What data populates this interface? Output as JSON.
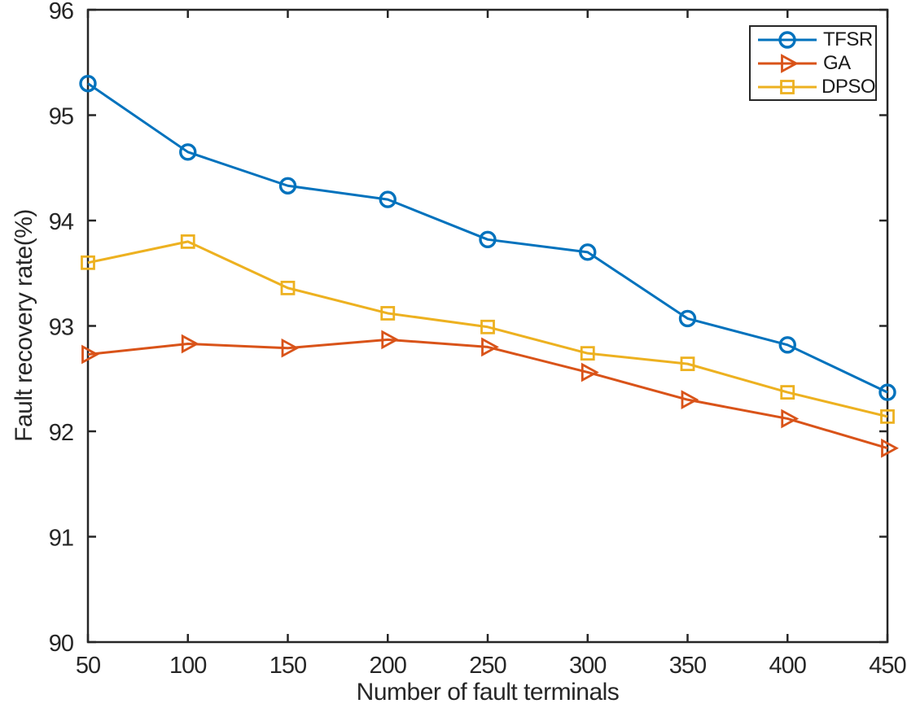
{
  "chart_data": {
    "type": "line",
    "title": "",
    "xlabel": "Number of fault terminals",
    "ylabel": "Fault recovery rate(%)",
    "xlim": [
      50,
      450
    ],
    "ylim": [
      90,
      96
    ],
    "xticks": [
      50,
      100,
      150,
      200,
      250,
      300,
      350,
      400,
      450
    ],
    "yticks": [
      90,
      91,
      92,
      93,
      94,
      95,
      96
    ],
    "grid": false,
    "legend_position": "top-right",
    "x": [
      50,
      100,
      150,
      200,
      250,
      300,
      350,
      400,
      450
    ],
    "series": [
      {
        "name": "TFSR",
        "marker": "circle",
        "color": "#0072BD",
        "values": [
          95.3,
          94.65,
          94.33,
          94.2,
          93.82,
          93.7,
          93.07,
          92.82,
          92.37
        ]
      },
      {
        "name": "GA",
        "marker": "triangle-right",
        "color": "#D95319",
        "values": [
          92.73,
          92.83,
          92.79,
          92.87,
          92.8,
          92.56,
          92.3,
          92.12,
          91.84
        ]
      },
      {
        "name": "DPSO",
        "marker": "square",
        "color": "#EDB120",
        "values": [
          93.6,
          93.8,
          93.36,
          93.12,
          92.99,
          92.74,
          92.64,
          92.37,
          92.14
        ]
      }
    ]
  },
  "styles": {
    "axis_color": "#262626",
    "text_color": "#262626",
    "background": "#ffffff",
    "tick_font_size": 29
  }
}
